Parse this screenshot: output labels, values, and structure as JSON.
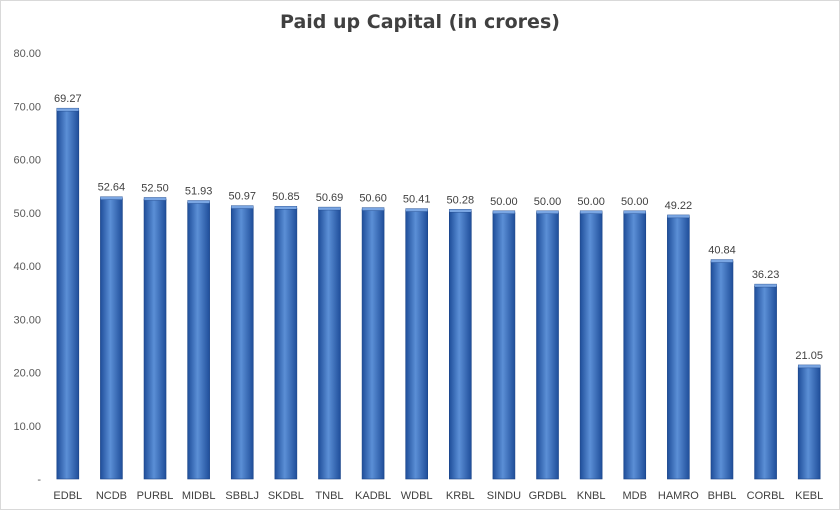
{
  "chart_data": {
    "type": "bar",
    "title": "Paid up Capital  (in crores)",
    "xlabel": "",
    "ylabel": "",
    "ylim": [
      0,
      80
    ],
    "yticks": [
      "-",
      "10.00",
      "20.00",
      "30.00",
      "40.00",
      "50.00",
      "60.00",
      "70.00",
      "80.00"
    ],
    "grid": false,
    "legend": "none",
    "categories": [
      "EDBL",
      "NCDB",
      "PURBL",
      "MIDBL",
      "SBBLJ",
      "SKDBL",
      "TNBL",
      "KADBL",
      "WDBL",
      "KRBL",
      "SINDU",
      "GRDBL",
      "KNBL",
      "MDB",
      "HAMRO",
      "BHBL",
      "CORBL",
      "KEBL"
    ],
    "values": [
      69.27,
      52.64,
      52.5,
      51.93,
      50.97,
      50.85,
      50.69,
      50.6,
      50.41,
      50.28,
      50.0,
      50.0,
      50.0,
      50.0,
      49.22,
      40.84,
      36.23,
      21.05
    ],
    "value_labels": [
      "69.27",
      "52.64",
      "52.50",
      "51.93",
      "50.97",
      "50.85",
      "50.69",
      "50.60",
      "50.41",
      "50.28",
      "50.00",
      "50.00",
      "50.00",
      "50.00",
      "49.22",
      "40.84",
      "36.23",
      "21.05"
    ],
    "colors": {
      "bar_light": "#5b8fd6",
      "bar_mid": "#3a6fc4",
      "bar_dark": "#1f4e9a"
    }
  }
}
